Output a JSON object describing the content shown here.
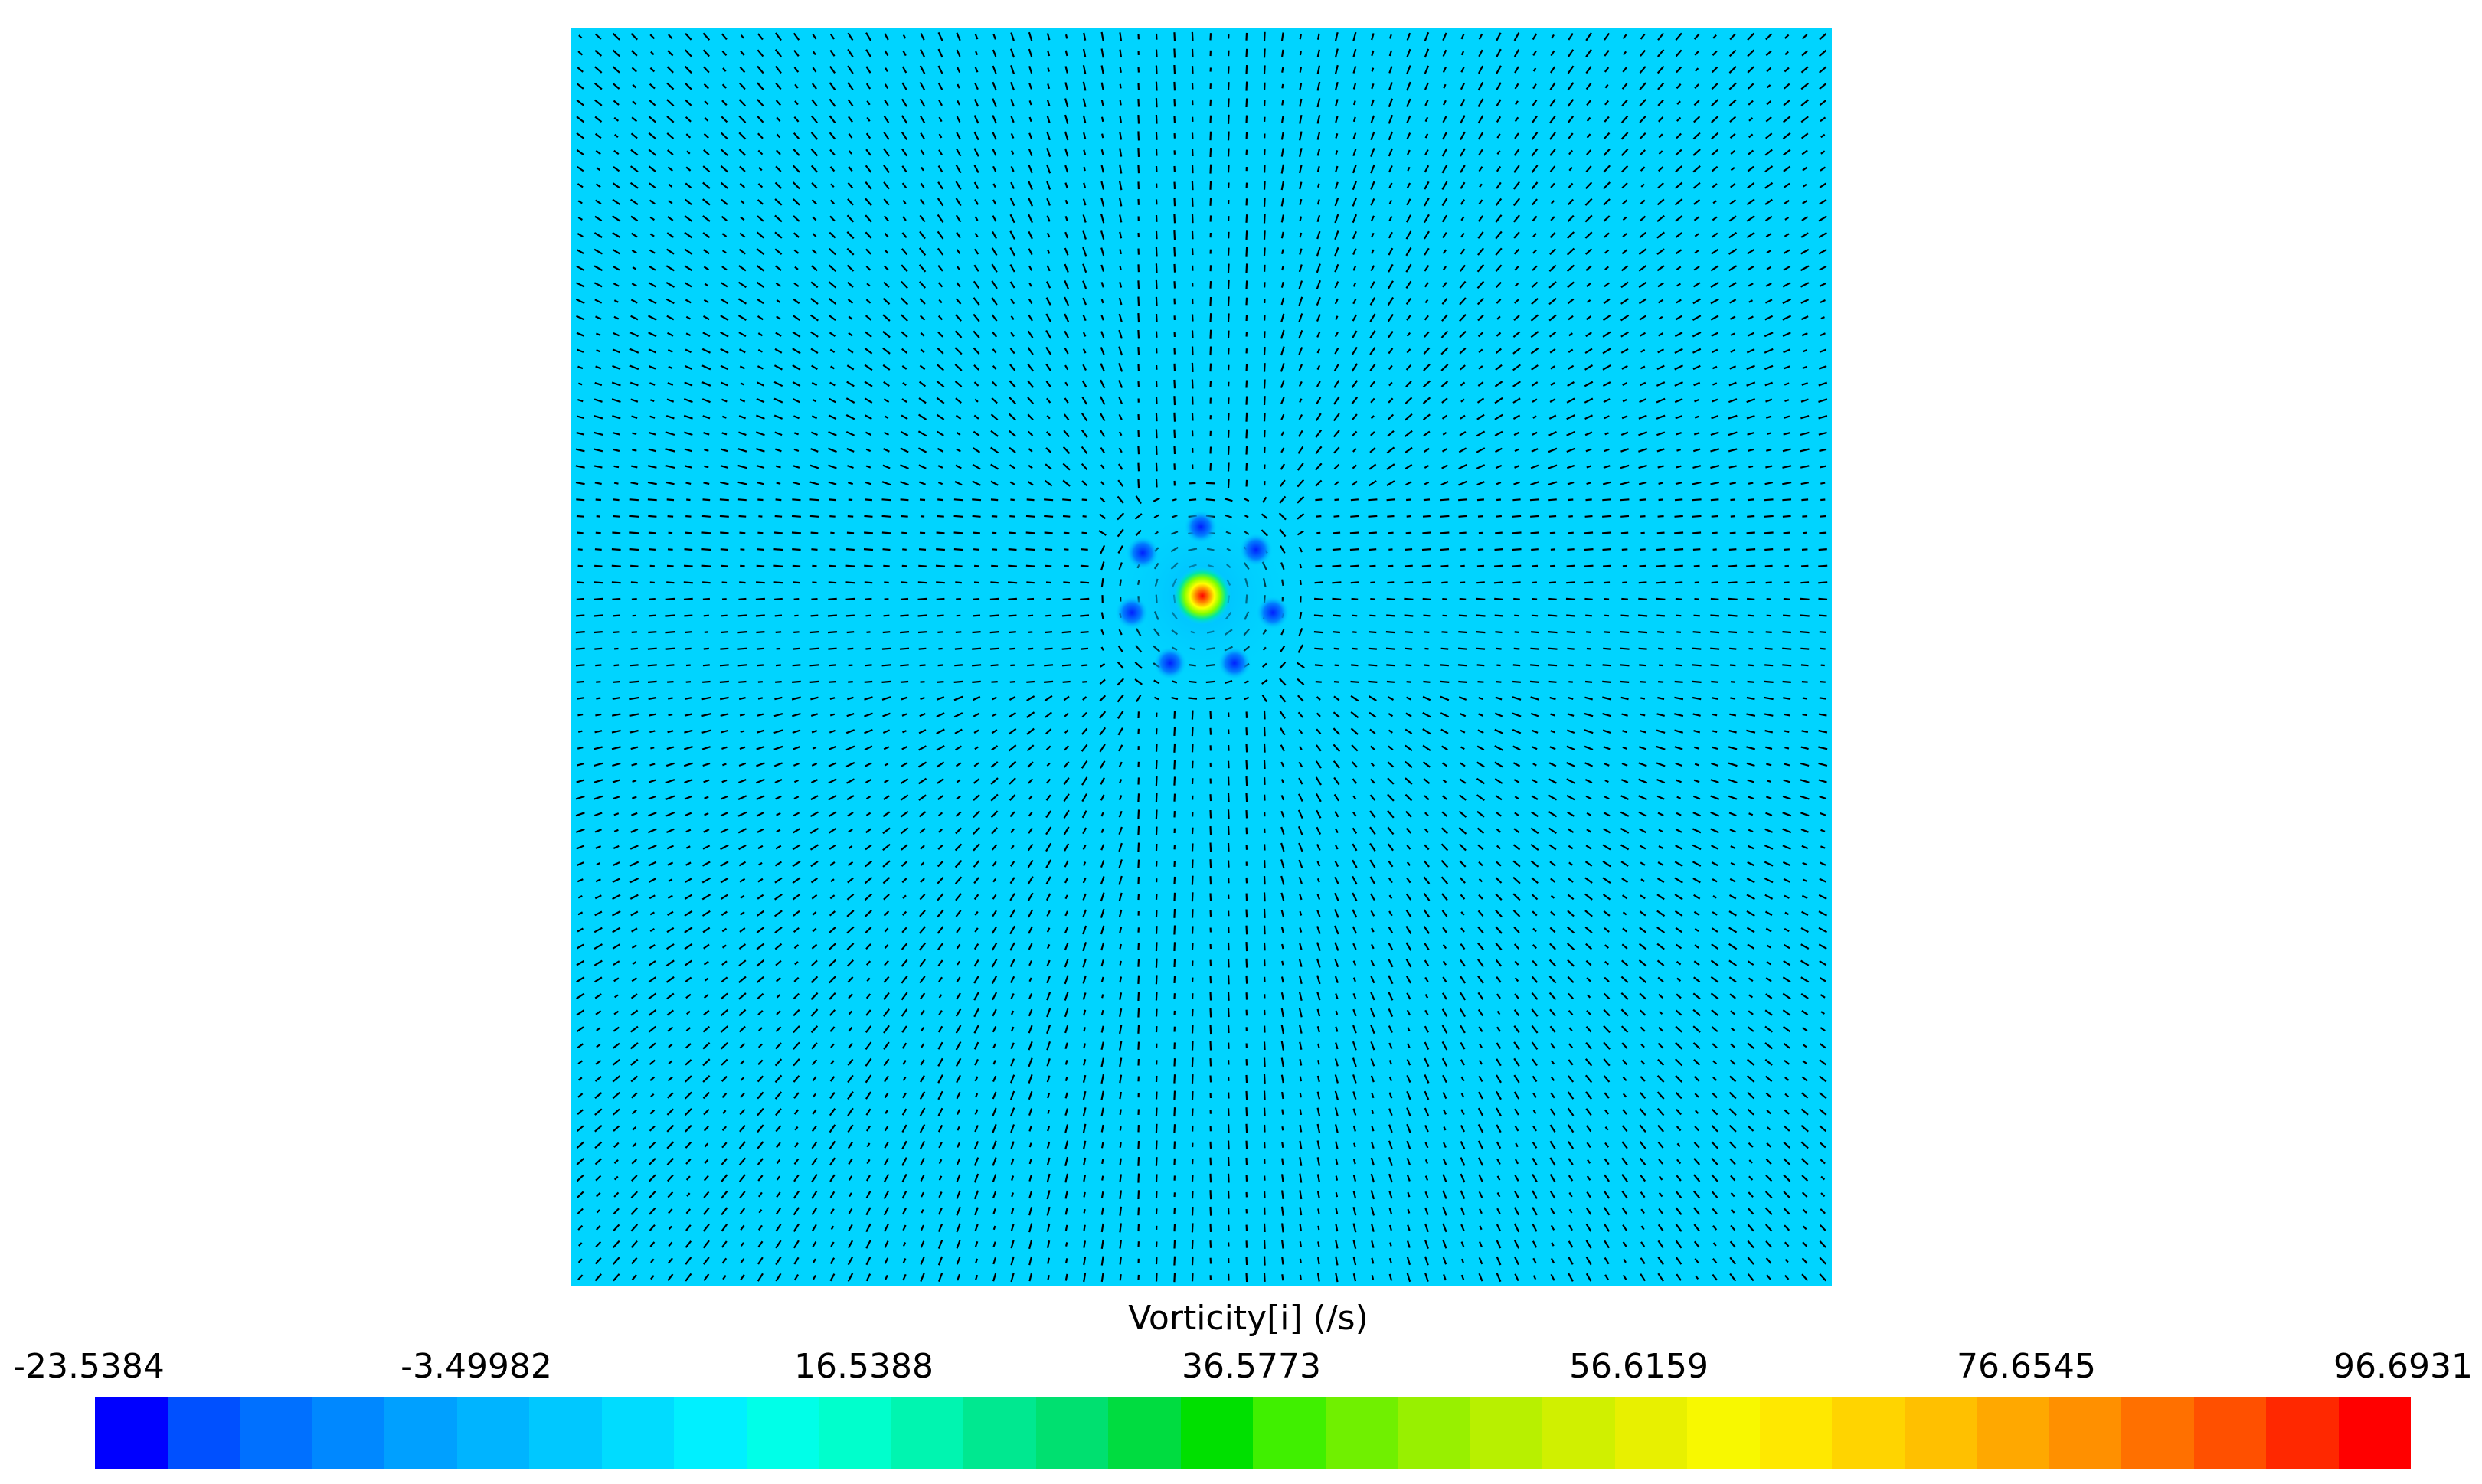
{
  "legend": {
    "title": "Vorticity[i] (/s)",
    "tick_labels": [
      "-23.5384",
      "-3.49982",
      "16.5388",
      "36.5773",
      "56.6159",
      "76.6545",
      "96.6931"
    ],
    "min": -23.5384,
    "max": 96.6931
  },
  "colors": {
    "background_field": "#00d4ff",
    "vector_color": "#000000",
    "colormap": [
      "#0000ff",
      "#0050ff",
      "#0070ff",
      "#0088ff",
      "#00a0ff",
      "#00b4ff",
      "#00c8ff",
      "#00dcff",
      "#00f0ff",
      "#00ffe8",
      "#00ffcc",
      "#00f5b0",
      "#00e890",
      "#00e070",
      "#00dc40",
      "#00e000",
      "#40f000",
      "#70f000",
      "#98f000",
      "#b8f000",
      "#d0f000",
      "#e8f000",
      "#f8f800",
      "#ffe800",
      "#ffd400",
      "#ffc000",
      "#ffa800",
      "#ff9000",
      "#ff7000",
      "#ff5000",
      "#ff2800",
      "#ff0000"
    ]
  }
}
